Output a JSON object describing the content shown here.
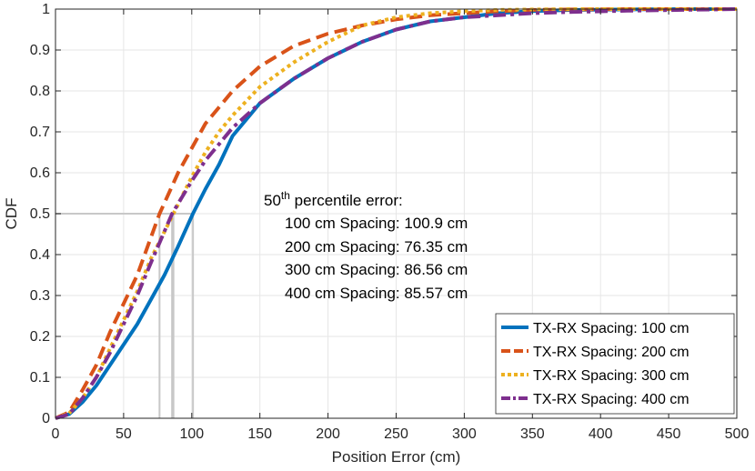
{
  "chart_data": {
    "type": "line",
    "title": "",
    "xlabel": "Position Error (cm)",
    "ylabel": "CDF",
    "xlim": [
      0,
      500
    ],
    "ylim": [
      0,
      1
    ],
    "xticks": [
      "0",
      "50",
      "100",
      "150",
      "200",
      "250",
      "300",
      "350",
      "400",
      "450",
      "500"
    ],
    "yticks": [
      "0",
      "0.1",
      "0.2",
      "0.3",
      "0.4",
      "0.5",
      "0.6",
      "0.7",
      "0.8",
      "0.9",
      "1"
    ],
    "grid": true,
    "legend_position": "bottom-right",
    "series": [
      {
        "name": "TX-RX Spacing: 100 cm",
        "color": "#0072BD",
        "style": "solid",
        "x": [
          0,
          10,
          20,
          30,
          40,
          50,
          60,
          70,
          80,
          90,
          100.9,
          110,
          120,
          130,
          140,
          150,
          175,
          200,
          225,
          250,
          275,
          300,
          325,
          350,
          380,
          420,
          460,
          500
        ],
        "y": [
          0,
          0.01,
          0.04,
          0.08,
          0.13,
          0.18,
          0.23,
          0.29,
          0.35,
          0.42,
          0.5,
          0.56,
          0.62,
          0.69,
          0.73,
          0.77,
          0.83,
          0.88,
          0.92,
          0.95,
          0.97,
          0.98,
          0.99,
          0.995,
          0.998,
          0.999,
          1.0,
          1.0
        ]
      },
      {
        "name": "TX-RX Spacing: 200 cm",
        "color": "#D95319",
        "style": "dashed",
        "x": [
          0,
          10,
          20,
          30,
          40,
          50,
          60,
          76.35,
          90,
          100,
          110,
          120,
          130,
          150,
          175,
          200,
          225,
          250,
          275,
          300,
          325,
          350,
          380,
          420,
          460,
          500
        ],
        "y": [
          0,
          0.015,
          0.07,
          0.13,
          0.21,
          0.28,
          0.35,
          0.5,
          0.6,
          0.66,
          0.72,
          0.76,
          0.8,
          0.86,
          0.91,
          0.94,
          0.96,
          0.975,
          0.985,
          0.99,
          0.995,
          0.998,
          0.999,
          1.0,
          1.0,
          1.0
        ]
      },
      {
        "name": "TX-RX Spacing: 300 cm",
        "color": "#EDB120",
        "style": "dotted",
        "x": [
          0,
          10,
          20,
          30,
          40,
          50,
          60,
          70,
          86.56,
          100,
          110,
          120,
          130,
          150,
          175,
          200,
          225,
          250,
          275,
          300,
          325,
          350,
          380,
          420,
          460,
          500
        ],
        "y": [
          0,
          0.012,
          0.05,
          0.1,
          0.17,
          0.24,
          0.31,
          0.39,
          0.5,
          0.59,
          0.65,
          0.7,
          0.74,
          0.81,
          0.87,
          0.92,
          0.96,
          0.98,
          0.99,
          0.995,
          0.998,
          0.999,
          1.0,
          1.0,
          1.0,
          1.0
        ]
      },
      {
        "name": "TX-RX Spacing: 400 cm",
        "color": "#7E2F8E",
        "style": "dashdot",
        "x": [
          0,
          10,
          20,
          30,
          40,
          50,
          60,
          70,
          85.57,
          100,
          110,
          120,
          130,
          150,
          175,
          200,
          225,
          250,
          275,
          300,
          325,
          350,
          380,
          420,
          460,
          500
        ],
        "y": [
          0,
          0.01,
          0.05,
          0.1,
          0.16,
          0.23,
          0.3,
          0.38,
          0.5,
          0.58,
          0.63,
          0.67,
          0.71,
          0.77,
          0.83,
          0.88,
          0.92,
          0.95,
          0.97,
          0.98,
          0.985,
          0.99,
          0.993,
          0.996,
          0.998,
          1.0
        ]
      }
    ],
    "median_markers": [
      {
        "value": 100.9,
        "label": "100 cm Spacing: 100.9 cm"
      },
      {
        "value": 76.35,
        "label": "200 cm Spacing: 76.35 cm"
      },
      {
        "value": 86.56,
        "label": "300 cm Spacing: 86.56 cm"
      },
      {
        "value": 85.57,
        "label": "400 cm Spacing: 85.57 cm"
      }
    ],
    "annotation": {
      "heading": "50",
      "heading_sup": "th",
      "heading_rest": " percentile error:",
      "lines": [
        "100 cm Spacing: 100.9 cm",
        "200 cm Spacing: 76.35 cm",
        "300 cm Spacing: 86.56 cm",
        "400 cm Spacing: 85.57 cm"
      ]
    }
  }
}
